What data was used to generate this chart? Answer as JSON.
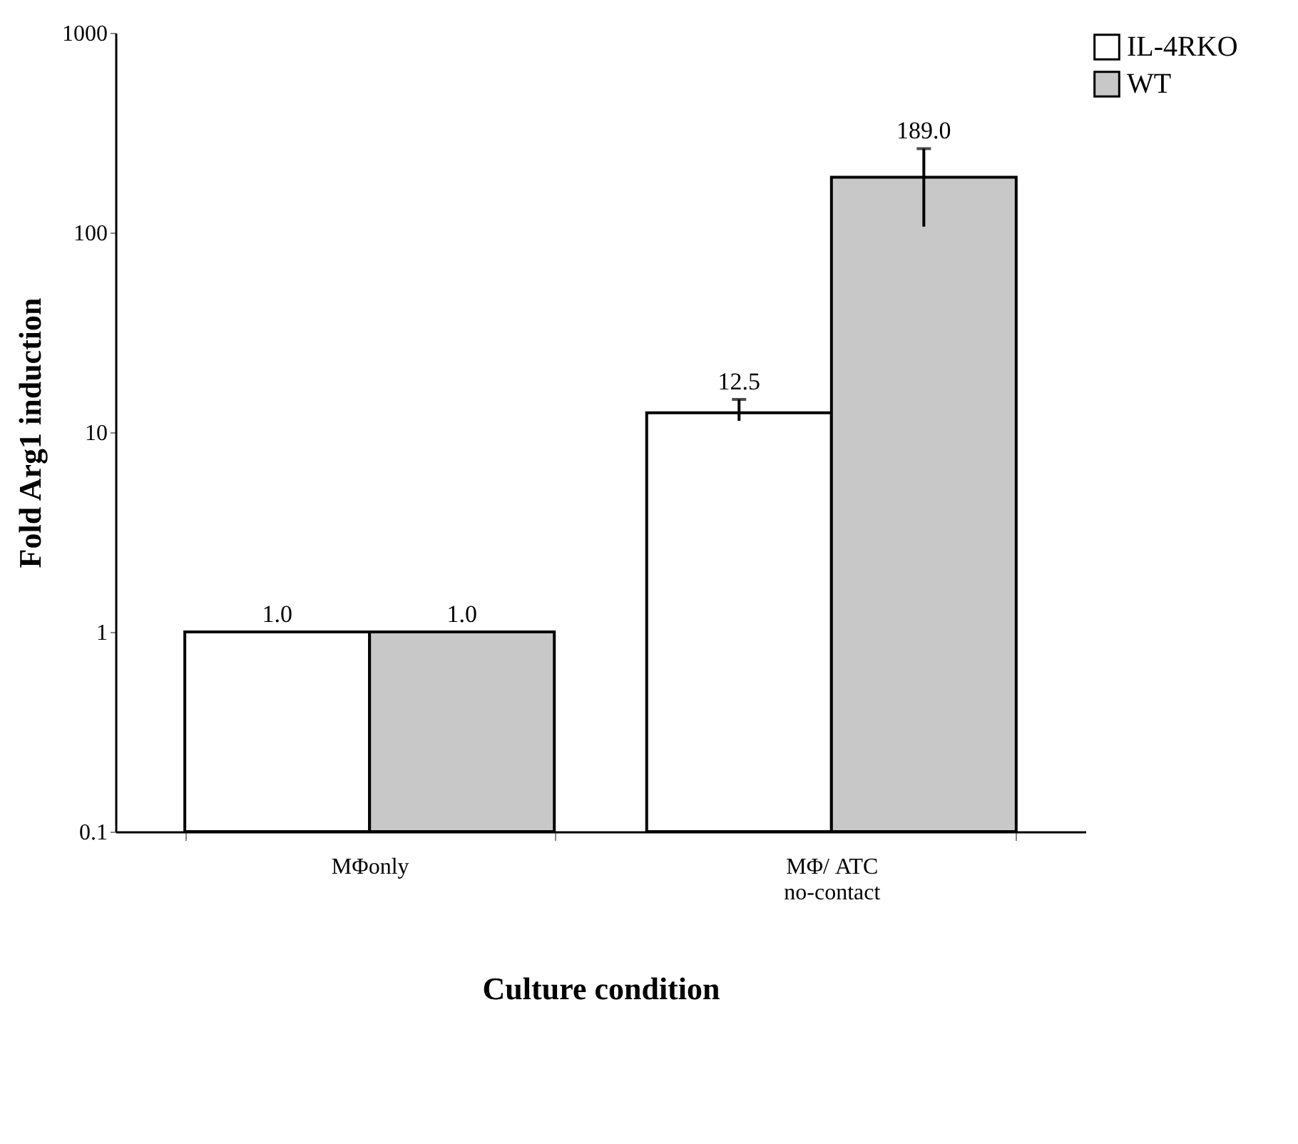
{
  "chart_data": {
    "type": "bar",
    "xlabel": "Culture condition",
    "ylabel": "Fold Arg1 induction",
    "categories": [
      "MΦonly",
      "MΦ/ ATC\nno-contact"
    ],
    "series": [
      {
        "name": "IL-4RKO",
        "color": "#ffffff",
        "values": [
          1.0,
          12.5
        ],
        "errors": [
          null,
          [
            11.4,
            14.6
          ]
        ],
        "value_labels": [
          "1.0",
          "12.5"
        ]
      },
      {
        "name": "WT",
        "color": "#c8c8c8",
        "values": [
          1.0,
          189.0
        ],
        "errors": [
          null,
          [
            107,
            263
          ]
        ],
        "value_labels": [
          "1.0",
          "189.0"
        ]
      }
    ],
    "log": true,
    "ylim": [
      0.1,
      1000
    ],
    "yticks": [
      0.1,
      1,
      10,
      100,
      1000
    ],
    "grid": false,
    "legend": "right"
  }
}
